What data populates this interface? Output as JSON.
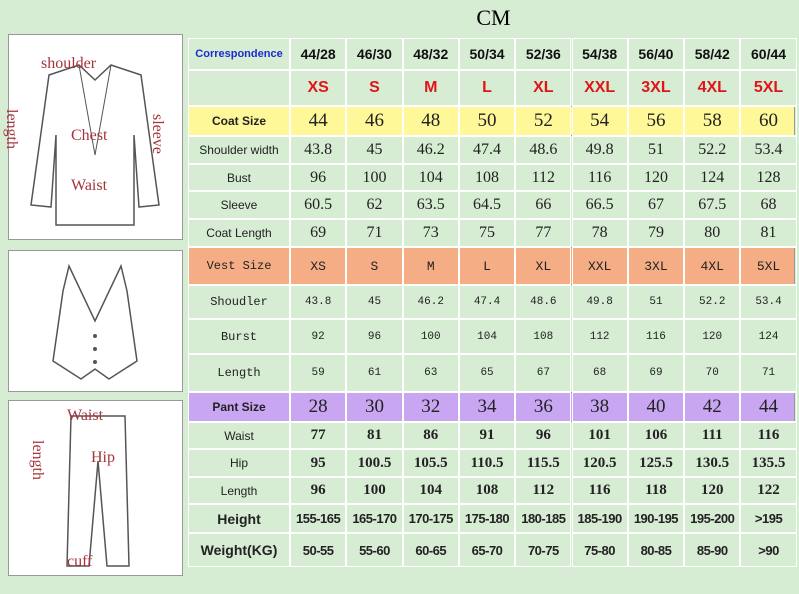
{
  "title": "CM",
  "figures": {
    "coat": [
      "shoulder",
      "length",
      "sleeve",
      "Chest",
      "Waist"
    ],
    "pants": [
      "Waist",
      "length",
      "Hip",
      "cuff"
    ]
  },
  "table": {
    "rows": [
      {
        "label": "Correspondence",
        "cells": [
          "44/28",
          "46/30",
          "48/32",
          "50/34",
          "52/36",
          "54/38",
          "56/40",
          "58/42",
          "60/44"
        ]
      },
      {
        "cells": [
          "XS",
          "S",
          "M",
          "L",
          "XL",
          "XXL",
          "3XL",
          "4XL",
          "5XL"
        ]
      },
      {
        "label": "Coat Size",
        "color": "#fff899",
        "cells": [
          "44",
          "46",
          "48",
          "50",
          "52",
          "54",
          "56",
          "58",
          "60"
        ]
      },
      {
        "label": "Shoulder width",
        "cells": [
          "43.8",
          "45",
          "46.2",
          "47.4",
          "48.6",
          "49.8",
          "51",
          "52.2",
          "53.4"
        ]
      },
      {
        "label": "Bust",
        "cells": [
          "96",
          "100",
          "104",
          "108",
          "112",
          "116",
          "120",
          "124",
          "128"
        ]
      },
      {
        "label": "Sleeve",
        "cells": [
          "60.5",
          "62",
          "63.5",
          "64.5",
          "66",
          "66.5",
          "67",
          "67.5",
          "68"
        ]
      },
      {
        "label": "Coat Length",
        "cells": [
          "69",
          "71",
          "73",
          "75",
          "77",
          "78",
          "79",
          "80",
          "81"
        ]
      },
      {
        "label": "Vest Size",
        "color": "#f4ad84",
        "cells": [
          "XS",
          "S",
          "M",
          "L",
          "XL",
          "XXL",
          "3XL",
          "4XL",
          "5XL"
        ]
      },
      {
        "label": "Shoudler",
        "cells": [
          "43.8",
          "45",
          "46.2",
          "47.4",
          "48.6",
          "49.8",
          "51",
          "52.2",
          "53.4"
        ]
      },
      {
        "label": "Burst",
        "cells": [
          "92",
          "96",
          "100",
          "104",
          "108",
          "112",
          "116",
          "120",
          "124"
        ]
      },
      {
        "label": "Length",
        "cells": [
          "59",
          "61",
          "63",
          "65",
          "67",
          "68",
          "69",
          "70",
          "71"
        ]
      },
      {
        "label": "Pant Size",
        "color": "#c8a6f2",
        "cells": [
          "28",
          "30",
          "32",
          "34",
          "36",
          "38",
          "40",
          "42",
          "44"
        ]
      },
      {
        "label": "Waist",
        "cells": [
          "77",
          "81",
          "86",
          "91",
          "96",
          "101",
          "106",
          "111",
          "116"
        ]
      },
      {
        "label": "Hip",
        "cells": [
          "95",
          "100.5",
          "105.5",
          "110.5",
          "115.5",
          "120.5",
          "125.5",
          "130.5",
          "135.5"
        ]
      },
      {
        "label": "Length",
        "cells": [
          "96",
          "100",
          "104",
          "108",
          "112",
          "116",
          "118",
          "120",
          "122"
        ]
      },
      {
        "label": "Height",
        "cells": [
          "155-165",
          "165-170",
          "170-175",
          "175-180",
          "180-185",
          "185-190",
          "190-195",
          "195-200",
          ">195"
        ]
      },
      {
        "label": "Weight(KG)",
        "cells": [
          "50-55",
          "55-60",
          "60-65",
          "65-70",
          "70-75",
          "75-80",
          "80-85",
          "85-90",
          ">90"
        ]
      }
    ]
  }
}
